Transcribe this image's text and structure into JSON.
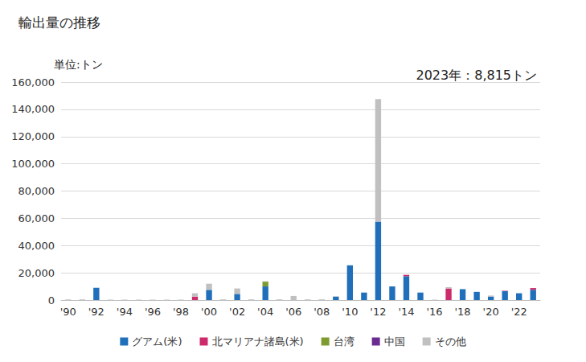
{
  "chart_data": {
    "type": "bar",
    "title": "輸出量の推移",
    "y_label": "単位:トン",
    "annotation": "2023年：8,815トン",
    "stacked": true,
    "grid": true,
    "legend": "bottom",
    "categories": [
      "'90",
      null,
      "'92",
      null,
      "'94",
      null,
      "'96",
      null,
      "'98",
      null,
      "'00",
      null,
      "'02",
      null,
      "'04",
      null,
      "'06",
      null,
      "'08",
      null,
      "'10",
      null,
      "'12",
      null,
      "'14",
      null,
      "'16",
      null,
      "'18",
      null,
      "'20",
      null,
      "'22",
      null
    ],
    "series": [
      {
        "name": "グアム(米)",
        "color": "#1f6fba",
        "values": [
          0,
          0,
          9000,
          0,
          0,
          0,
          0,
          0,
          0,
          0,
          7500,
          0,
          4500,
          0,
          10000,
          0,
          0,
          0,
          0,
          2500,
          25500,
          5500,
          57500,
          10000,
          17500,
          5500,
          0,
          0,
          8000,
          6000,
          2500,
          6500,
          5000,
          7500
        ]
      },
      {
        "name": "北マリアナ諸島(米)",
        "color": "#cc2a6a",
        "values": [
          0,
          0,
          0,
          0,
          0,
          0,
          0,
          0,
          0,
          2500,
          0,
          0,
          0,
          0,
          0,
          0,
          0,
          0,
          0,
          0,
          0,
          0,
          0,
          0,
          1000,
          0,
          0,
          8500,
          0,
          0,
          0,
          300,
          0,
          1315
        ]
      },
      {
        "name": "台湾",
        "color": "#7f9a2e",
        "values": [
          0,
          0,
          0,
          0,
          0,
          0,
          0,
          0,
          0,
          0,
          0,
          0,
          0,
          0,
          3500,
          0,
          0,
          0,
          0,
          0,
          0,
          0,
          0,
          0,
          0,
          0,
          0,
          0,
          0,
          0,
          0,
          0,
          0,
          0
        ]
      },
      {
        "name": "中国",
        "color": "#6a2c91",
        "values": [
          0,
          0,
          0,
          0,
          0,
          0,
          0,
          0,
          0,
          0,
          0,
          0,
          0,
          0,
          0,
          0,
          0,
          0,
          0,
          0,
          0,
          0,
          0,
          0,
          0,
          0,
          0,
          0,
          0,
          0,
          100,
          0,
          0,
          0
        ]
      },
      {
        "name": "その他",
        "color": "#c0c0c0",
        "values": [
          500,
          500,
          0,
          300,
          300,
          300,
          300,
          300,
          300,
          2500,
          4500,
          500,
          4000,
          500,
          300,
          500,
          3000,
          500,
          500,
          300,
          0,
          0,
          90000,
          0,
          0,
          0,
          300,
          1000,
          0,
          0,
          700,
          0,
          0,
          0
        ]
      }
    ],
    "ylim": [
      0,
      160000
    ],
    "yticks": [
      0,
      {
        "value": 20000,
        "label": "20,000"
      },
      {
        "value": 40000,
        "label": "40,000"
      },
      {
        "value": 60000,
        "label": "60,000"
      },
      {
        "value": 80000,
        "label": "80,000"
      },
      {
        "value": 100000,
        "label": "100,000"
      },
      {
        "value": 120000,
        "label": "120,000"
      },
      {
        "value": 140000,
        "label": "140,000"
      },
      {
        "value": 160000,
        "label": "160,000"
      }
    ]
  }
}
